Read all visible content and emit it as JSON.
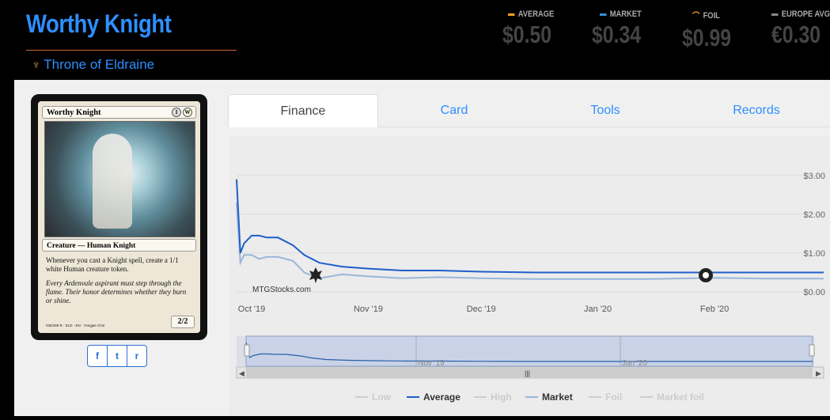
{
  "header": {
    "title": "Worthy Knight",
    "set_name": "Throne of Eldraine",
    "set_icon": "throne-of-eldraine-set-icon"
  },
  "prices": [
    {
      "label": "AVERAGE",
      "value": "$0.50",
      "color": "#f0a020"
    },
    {
      "label": "MARKET",
      "value": "$0.34",
      "color": "#3a8ed0"
    },
    {
      "label": "FOIL",
      "value": "$0.99",
      "color": "#f0a020"
    },
    {
      "label": "EUROPE AVG",
      "value": "€0.30",
      "color": "#888888"
    }
  ],
  "card": {
    "name": "Worthy Knight",
    "mana": [
      "1",
      "W"
    ],
    "type_line": "Creature — Human Knight",
    "rules_text": "Whenever you cast a Knight spell, create a 1/1 white Human creature token.",
    "flavor_text": "Every Ardenvale aspirant must step through the flame. Their honor determines whether they burn or shine.",
    "pt": "2/2",
    "footer": "036/269 R · ELD · EN · Yongjae Choi"
  },
  "share": {
    "facebook": "f",
    "twitter": "t",
    "reddit": "r"
  },
  "tabs": [
    {
      "label": "Finance",
      "active": true
    },
    {
      "label": "Card",
      "active": false
    },
    {
      "label": "Tools",
      "active": false
    },
    {
      "label": "Records",
      "active": false
    }
  ],
  "chart_data": {
    "type": "line",
    "watermark": "MTGStocks.com",
    "x_ticks": [
      "Oct '19",
      "Nov '19",
      "Dec '19",
      "Jan '20",
      "Feb '20"
    ],
    "y_ticks": [
      "$3.00",
      "$2.00",
      "$1.00",
      "$0.00"
    ],
    "ylim": [
      0,
      3.2
    ],
    "navigator_ticks": [
      "Nov '19",
      "Jan '20"
    ],
    "series": [
      {
        "name": "Average",
        "color": "#1f5fc8",
        "visible": true,
        "x": [
          "2019-09-27",
          "2019-09-28",
          "2019-09-29",
          "2019-10-01",
          "2019-10-03",
          "2019-10-05",
          "2019-10-08",
          "2019-10-12",
          "2019-10-15",
          "2019-10-19",
          "2019-10-25",
          "2019-11-01",
          "2019-11-10",
          "2019-11-20",
          "2019-12-01",
          "2019-12-15",
          "2020-01-01",
          "2020-01-15",
          "2020-02-01",
          "2020-02-15",
          "2020-03-01"
        ],
        "values": [
          2.9,
          1.0,
          1.25,
          1.45,
          1.45,
          1.4,
          1.4,
          1.2,
          0.95,
          0.75,
          0.65,
          0.6,
          0.55,
          0.55,
          0.52,
          0.5,
          0.5,
          0.5,
          0.5,
          0.5,
          0.5
        ]
      },
      {
        "name": "Market",
        "color": "#9ab6d8",
        "visible": true,
        "x": [
          "2019-09-27",
          "2019-09-28",
          "2019-09-29",
          "2019-10-01",
          "2019-10-03",
          "2019-10-05",
          "2019-10-08",
          "2019-10-12",
          "2019-10-15",
          "2019-10-19",
          "2019-10-25",
          "2019-11-01",
          "2019-11-10",
          "2019-11-20",
          "2019-12-01",
          "2019-12-15",
          "2020-01-01",
          "2020-01-15",
          "2020-02-01",
          "2020-02-15",
          "2020-03-01"
        ],
        "values": [
          2.3,
          0.75,
          0.95,
          0.95,
          0.85,
          0.9,
          0.9,
          0.8,
          0.5,
          0.35,
          0.45,
          0.4,
          0.35,
          0.38,
          0.35,
          0.33,
          0.33,
          0.33,
          0.36,
          0.34,
          0.34
        ]
      }
    ],
    "legend": [
      {
        "name": "Low",
        "color": "#cccccc",
        "active": false
      },
      {
        "name": "Average",
        "color": "#1f5fc8",
        "active": true
      },
      {
        "name": "High",
        "color": "#cccccc",
        "active": false
      },
      {
        "name": "Market",
        "color": "#9ab6d8",
        "active": true
      },
      {
        "name": "Foil",
        "color": "#cccccc",
        "active": false
      },
      {
        "name": "Market foil",
        "color": "#cccccc",
        "active": false
      }
    ]
  }
}
